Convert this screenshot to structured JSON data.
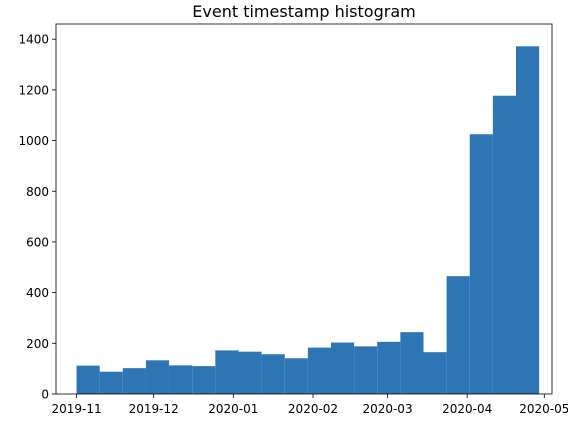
{
  "chart_data": {
    "type": "bar",
    "title": "Event timestamp histogram",
    "xlabel": "",
    "ylabel": "",
    "x_tick_labels": [
      "2019-11",
      "2019-12",
      "2020-01",
      "2020-02",
      "2020-03",
      "2020-04",
      "2020-05"
    ],
    "x_tick_dates": [
      "2019-11-01",
      "2019-12-01",
      "2020-01-01",
      "2020-02-01",
      "2020-03-01",
      "2020-04-01",
      "2020-05-01"
    ],
    "xlim": [
      "2019-10-24",
      "2020-05-04"
    ],
    "y_tick_labels": [
      "0",
      "200",
      "400",
      "600",
      "800",
      "1000",
      "1200",
      "1400"
    ],
    "ylim": [
      0,
      1460
    ],
    "grid": false,
    "bar_color": "#2e75b4",
    "bins": [
      {
        "start": "2019-11-01",
        "end": "2019-11-10",
        "value": 112
      },
      {
        "start": "2019-11-10",
        "end": "2019-11-19",
        "value": 88
      },
      {
        "start": "2019-11-19",
        "end": "2019-11-28",
        "value": 102
      },
      {
        "start": "2019-11-28",
        "end": "2019-12-07",
        "value": 133
      },
      {
        "start": "2019-12-07",
        "end": "2019-12-16",
        "value": 113
      },
      {
        "start": "2019-12-16",
        "end": "2019-12-25",
        "value": 110
      },
      {
        "start": "2019-12-25",
        "end": "2020-01-03",
        "value": 172
      },
      {
        "start": "2020-01-03",
        "end": "2020-01-12",
        "value": 167
      },
      {
        "start": "2020-01-12",
        "end": "2020-01-21",
        "value": 157
      },
      {
        "start": "2020-01-21",
        "end": "2020-01-30",
        "value": 141
      },
      {
        "start": "2020-01-30",
        "end": "2020-02-08",
        "value": 183
      },
      {
        "start": "2020-02-08",
        "end": "2020-02-17",
        "value": 203
      },
      {
        "start": "2020-02-17",
        "end": "2020-02-26",
        "value": 188
      },
      {
        "start": "2020-02-26",
        "end": "2020-03-06",
        "value": 206
      },
      {
        "start": "2020-03-06",
        "end": "2020-03-15",
        "value": 244
      },
      {
        "start": "2020-03-15",
        "end": "2020-03-24",
        "value": 165
      },
      {
        "start": "2020-03-24",
        "end": "2020-04-02",
        "value": 465
      },
      {
        "start": "2020-04-02",
        "end": "2020-04-11",
        "value": 1025
      },
      {
        "start": "2020-04-11",
        "end": "2020-04-20",
        "value": 1177
      },
      {
        "start": "2020-04-20",
        "end": "2020-04-29",
        "value": 1372
      }
    ]
  }
}
